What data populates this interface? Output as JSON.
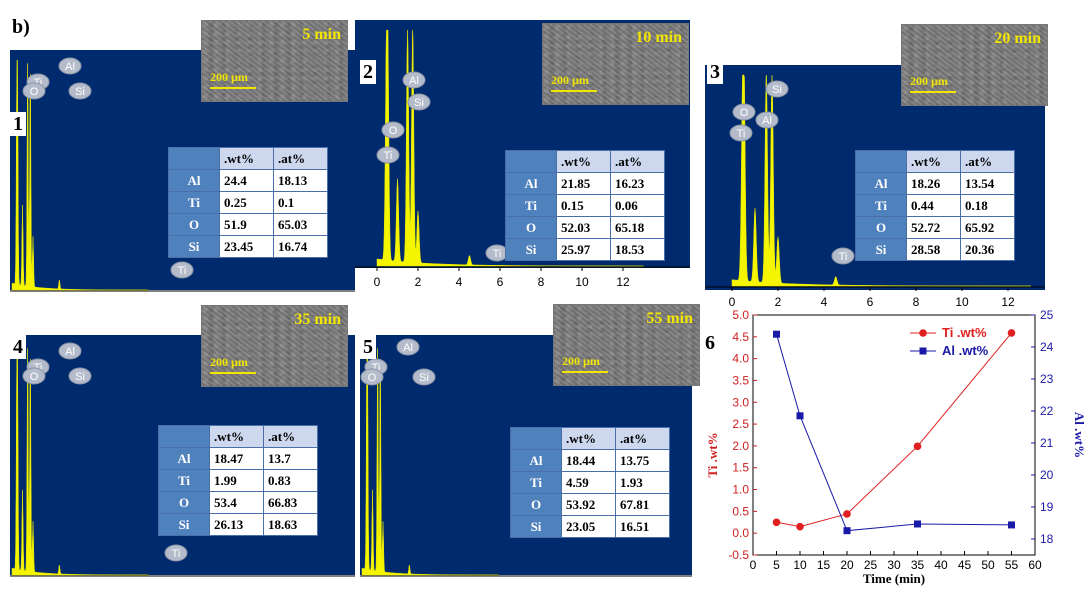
{
  "figure_label": "b)",
  "units": {
    "scale_bar": "200 µm"
  },
  "table_headers": {
    "wt": ".wt%",
    "at": ".at%"
  },
  "panels": [
    {
      "number": "1",
      "time": "5 min",
      "peak_labels": [
        "Ti",
        "O",
        "Al",
        "Si",
        "Ti"
      ],
      "composition": [
        {
          "element": "Al",
          "wt": "24.4",
          "at": "18.13"
        },
        {
          "element": "Ti",
          "wt": "0.25",
          "at": "0.1"
        },
        {
          "element": "O",
          "wt": "51.9",
          "at": "65.03"
        },
        {
          "element": "Si",
          "wt": "23.45",
          "at": "16.74"
        }
      ]
    },
    {
      "number": "2",
      "time": "10 min",
      "peak_labels": [
        "O",
        "Ti",
        "Al",
        "Si",
        "Ti"
      ],
      "x_ticks": [
        "0",
        "2",
        "4",
        "6",
        "8",
        "10",
        "12"
      ],
      "composition": [
        {
          "element": "Al",
          "wt": "21.85",
          "at": "16.23"
        },
        {
          "element": "Ti",
          "wt": "0.15",
          "at": "0.06"
        },
        {
          "element": "O",
          "wt": "52.03",
          "at": "65.18"
        },
        {
          "element": "Si",
          "wt": "25.97",
          "at": "18.53"
        }
      ]
    },
    {
      "number": "3",
      "time": "20 min",
      "peak_labels": [
        "O",
        "Ti",
        "Al",
        "Si",
        "Ti"
      ],
      "x_ticks": [
        "0",
        "2",
        "4",
        "6",
        "8",
        "10",
        "12"
      ],
      "composition": [
        {
          "element": "Al",
          "wt": "18.26",
          "at": "13.54"
        },
        {
          "element": "Ti",
          "wt": "0.44",
          "at": "0.18"
        },
        {
          "element": "O",
          "wt": "52.72",
          "at": "65.92"
        },
        {
          "element": "Si",
          "wt": "28.58",
          "at": "20.36"
        }
      ]
    },
    {
      "number": "4",
      "time": "35 min",
      "peak_labels": [
        "Ti",
        "O",
        "Al",
        "Si",
        "Ti"
      ],
      "composition": [
        {
          "element": "Al",
          "wt": "18.47",
          "at": "13.7"
        },
        {
          "element": "Ti",
          "wt": "1.99",
          "at": "0.83"
        },
        {
          "element": "O",
          "wt": "53.4",
          "at": "66.83"
        },
        {
          "element": "Si",
          "wt": "26.13",
          "at": "18.63"
        }
      ]
    },
    {
      "number": "5",
      "time": "55 min",
      "peak_labels": [
        "Ti",
        "O",
        "Al",
        "Si"
      ],
      "composition": [
        {
          "element": "Al",
          "wt": "18.44",
          "at": "13.75"
        },
        {
          "element": "Ti",
          "wt": "4.59",
          "at": "1.93"
        },
        {
          "element": "O",
          "wt": "53.92",
          "at": "67.81"
        },
        {
          "element": "Si",
          "wt": "23.05",
          "at": "16.51"
        }
      ]
    }
  ],
  "chart_data": {
    "type": "line",
    "panel_number": "6",
    "xlabel": "Time (min)",
    "ylabel": "Ti .wt%",
    "y2label": "Al .wt%",
    "x": [
      5,
      10,
      20,
      35,
      55
    ],
    "xlim": [
      0,
      60
    ],
    "x_ticks": [
      "0",
      "5",
      "10",
      "15",
      "20",
      "25",
      "30",
      "35",
      "40",
      "45",
      "50",
      "55",
      "60"
    ],
    "ylim": [
      -0.5,
      5.0
    ],
    "y_ticks": [
      "-0.5",
      "0.0",
      "0.5",
      "1.0",
      "1.5",
      "2.0",
      "2.5",
      "3.0",
      "3.5",
      "4.0",
      "4.5",
      "5.0"
    ],
    "y2lim": [
      17.5,
      25
    ],
    "y2_ticks": [
      "18",
      "19",
      "20",
      "21",
      "22",
      "23",
      "24",
      "25"
    ],
    "legend_position": "top-right",
    "series": [
      {
        "name": "Ti .wt%",
        "axis": "left",
        "color": "#e02020",
        "marker": "circle",
        "values": [
          0.25,
          0.15,
          0.44,
          1.99,
          4.59
        ]
      },
      {
        "name": "Al .wt%",
        "axis": "right",
        "color": "#1a1aa8",
        "marker": "square",
        "values": [
          24.4,
          21.85,
          18.26,
          18.47,
          18.44
        ]
      }
    ]
  },
  "colors": {
    "spectrum_bg": "#002a6e",
    "spectrum_fill": "#f5f500",
    "label_circle": "#b4bccb",
    "table_header": "#4f81bd"
  }
}
